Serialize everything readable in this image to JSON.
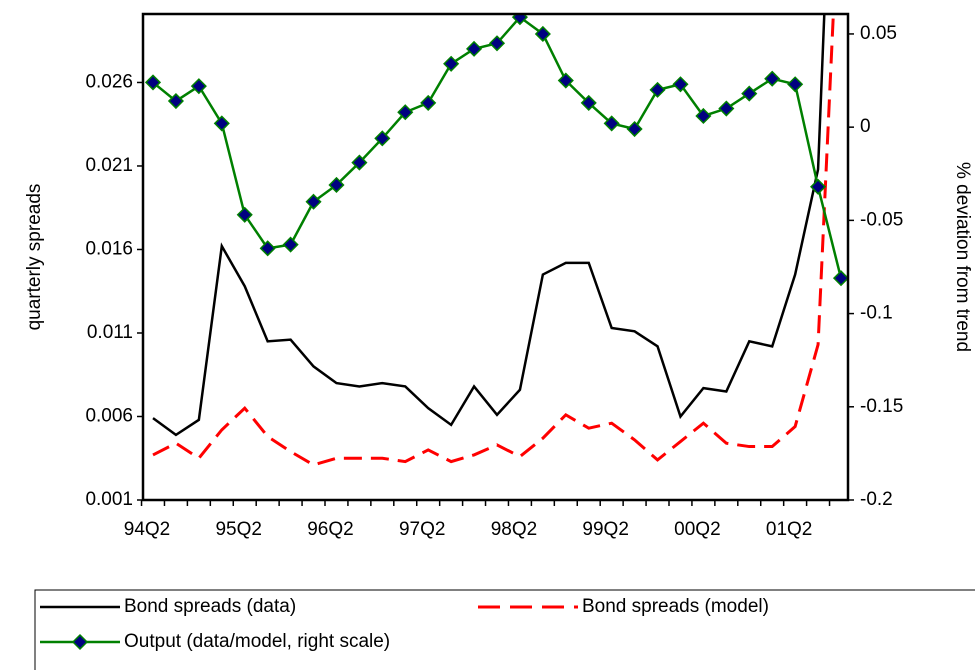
{
  "chart_data": {
    "type": "line",
    "ylabel": "quarterly spreads",
    "y2label": "% deviation from trend",
    "categories": [
      "94Q2",
      null,
      null,
      null,
      "95Q2",
      null,
      null,
      null,
      "96Q2",
      null,
      null,
      null,
      "97Q2",
      null,
      null,
      null,
      "98Q2",
      null,
      null,
      null,
      "99Q2",
      null,
      null,
      null,
      "00Q2",
      null,
      null,
      null,
      "01Q2",
      null,
      null
    ],
    "ylim": [
      0.001,
      0.0301
    ],
    "yticks": [
      0.001,
      0.006,
      0.011,
      0.016,
      0.021,
      0.026
    ],
    "y2lim": [
      -0.2,
      0.0607
    ],
    "y2ticks": [
      -0.2,
      -0.15,
      -0.1,
      -0.05,
      0,
      0.05
    ],
    "legend": "bottom",
    "series": [
      {
        "name": "Bond spreads (data)",
        "color": "#000000",
        "dash": "solid",
        "values": [
          0.0059,
          0.0049,
          0.0058,
          0.0162,
          0.0138,
          0.0105,
          0.0106,
          0.009,
          0.008,
          0.0078,
          0.008,
          0.0078,
          0.0065,
          0.0055,
          0.0078,
          0.0061,
          0.0076,
          0.0145,
          0.0152,
          0.0152,
          0.0113,
          0.0111,
          0.0102,
          0.006,
          0.0077,
          0.0075,
          0.0105,
          0.0102,
          0.0145,
          0.0208,
          0.055
        ]
      },
      {
        "name": "Bond spreads (model)",
        "color": "#ff0000",
        "dash": "dashed",
        "values": [
          0.0037,
          0.0044,
          0.0035,
          0.0052,
          0.0065,
          0.0048,
          0.0039,
          0.0031,
          0.0035,
          0.0035,
          0.0035,
          0.0033,
          0.004,
          0.0033,
          0.0037,
          0.0043,
          0.0036,
          0.0047,
          0.0061,
          0.0053,
          0.0056,
          0.0046,
          0.0034,
          0.0045,
          0.0056,
          0.0044,
          0.0042,
          0.0042,
          0.0054,
          0.0103,
          0.04
        ]
      },
      {
        "name": "Output (data/model, right scale)",
        "color": "#008000",
        "marker_color": "#000080",
        "axis": "y2",
        "values": [
          0.024,
          0.014,
          0.022,
          0.002,
          -0.047,
          -0.065,
          -0.063,
          -0.04,
          -0.031,
          -0.019,
          -0.006,
          0.008,
          0.013,
          0.034,
          0.042,
          0.045,
          0.059,
          0.05,
          0.025,
          0.013,
          0.002,
          -0.001,
          0.02,
          0.023,
          0.006,
          0.01,
          0.018,
          0.026,
          0.023,
          -0.032,
          -0.081
        ]
      }
    ]
  }
}
